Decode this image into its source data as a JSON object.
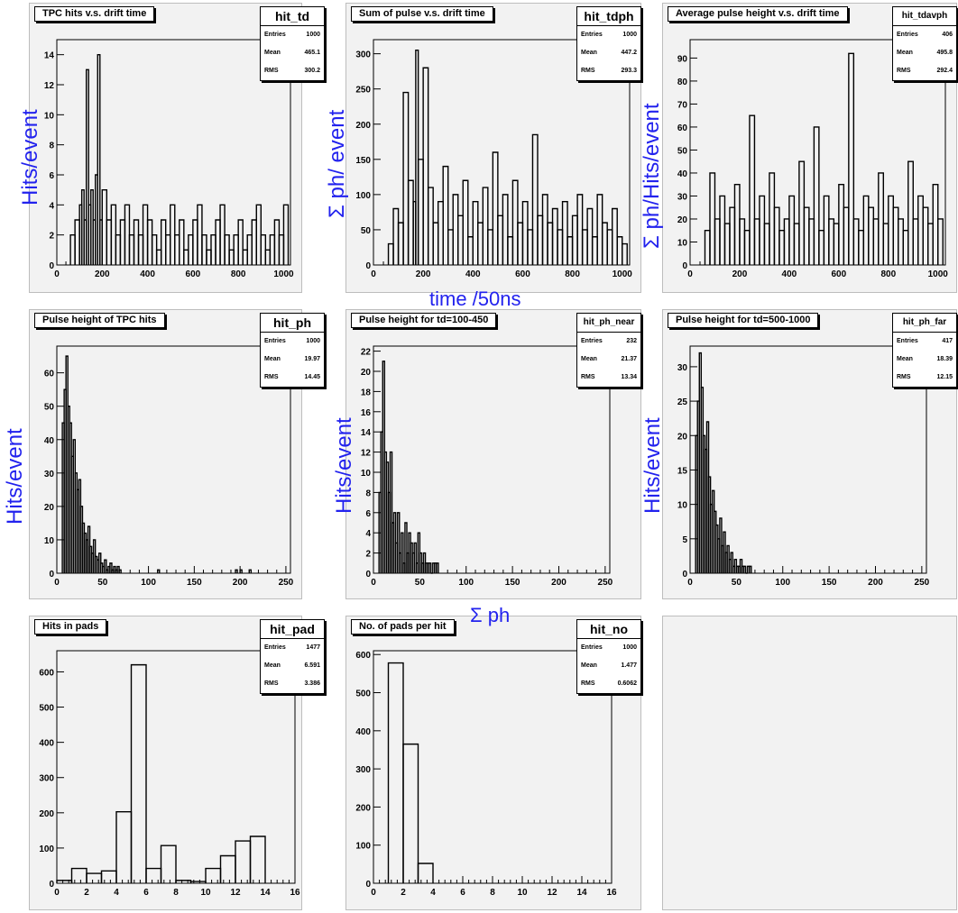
{
  "overlay": {
    "time_label": "time /50ns",
    "sum_ph_label": "Σ ph",
    "row1_ylabels": [
      "Hits/event",
      "Σ ph/ event",
      "Σ ph/Hits/event"
    ],
    "row2_ylabel": "Hits/event"
  },
  "colors": {
    "pad_bg": "#f2f2f2",
    "axis_label": "#2222ee",
    "line": "#000000"
  },
  "panels": [
    {
      "title": "TPC hits v.s. drift time",
      "stats": {
        "name": "hit_td",
        "entries_label": "Entries",
        "entries": "1000",
        "mean_label": "Mean",
        "mean": "465.1",
        "rms_label": "RMS",
        "rms": "300.2"
      }
    },
    {
      "title": "Sum of pulse v.s. drift time",
      "stats": {
        "name": "hit_tdph",
        "entries_label": "Entries",
        "entries": "1000",
        "mean_label": "Mean",
        "mean": "447.2",
        "rms_label": "RMS",
        "rms": "293.3"
      }
    },
    {
      "title": "Average pulse height v.s. drift time",
      "stats": {
        "name": "hit_tdavph",
        "entries_label": "Entries",
        "entries": "406",
        "mean_label": "Mean",
        "mean": "495.8",
        "rms_label": "RMS",
        "rms": "292.4"
      }
    },
    {
      "title": "Pulse height of TPC hits",
      "stats": {
        "name": "hit_ph",
        "entries_label": "Entries",
        "entries": "1000",
        "mean_label": "Mean",
        "mean": "19.97",
        "rms_label": "RMS",
        "rms": "14.45"
      }
    },
    {
      "title": "Pulse height for td=100-450",
      "stats": {
        "name": "hit_ph_near",
        "entries_label": "Entries",
        "entries": "232",
        "mean_label": "Mean",
        "mean": "21.37",
        "rms_label": "RMS",
        "rms": "13.34"
      }
    },
    {
      "title": "Pulse height for td=500-1000",
      "stats": {
        "name": "hit_ph_far",
        "entries_label": "Entries",
        "entries": "417",
        "mean_label": "Mean",
        "mean": "18.39",
        "rms_label": "RMS",
        "rms": "12.15"
      }
    },
    {
      "title": "Hits in pads",
      "stats": {
        "name": "hit_pad",
        "entries_label": "Entries",
        "entries": "1477",
        "mean_label": "Mean",
        "mean": "6.591",
        "rms_label": "RMS",
        "rms": "3.386"
      }
    },
    {
      "title": "No. of pads per hit",
      "stats": {
        "name": "hit_no",
        "entries_label": "Entries",
        "entries": "1000",
        "mean_label": "Mean",
        "mean": "1.477",
        "rms_label": "RMS",
        "rms": "0.6062"
      }
    }
  ],
  "chart_data": [
    {
      "type": "bar",
      "style": "step-histogram",
      "title": "TPC hits v.s. drift time",
      "xlim": [
        0,
        1030
      ],
      "ylim": [
        0,
        15
      ],
      "xticks": [
        0,
        200,
        400,
        600,
        800,
        1000
      ],
      "yticks": [
        0,
        2,
        4,
        6,
        8,
        10,
        12,
        14
      ],
      "x": [
        60,
        80,
        100,
        110,
        120,
        130,
        140,
        150,
        160,
        170,
        180,
        190,
        200,
        220,
        240,
        260,
        280,
        300,
        320,
        340,
        360,
        380,
        400,
        420,
        440,
        460,
        480,
        500,
        520,
        540,
        560,
        580,
        600,
        620,
        640,
        660,
        680,
        700,
        720,
        740,
        760,
        780,
        800,
        820,
        840,
        860,
        880,
        900,
        920,
        940,
        960,
        980,
        1000
      ],
      "values": [
        2,
        3,
        4,
        5,
        3,
        13,
        4,
        5,
        3,
        6,
        14,
        3,
        5,
        3,
        4,
        2,
        3,
        4,
        2,
        3,
        2,
        4,
        3,
        2,
        1,
        3,
        2,
        4,
        2,
        3,
        1,
        2,
        3,
        4,
        2,
        1,
        2,
        3,
        4,
        2,
        1,
        2,
        3,
        1,
        2,
        3,
        4,
        2,
        1,
        2,
        3,
        2,
        4
      ]
    },
    {
      "type": "bar",
      "style": "step-histogram",
      "title": "Sum of pulse v.s. drift time",
      "xlim": [
        0,
        1030
      ],
      "ylim": [
        0,
        320
      ],
      "xticks": [
        0,
        200,
        400,
        600,
        800,
        1000
      ],
      "yticks": [
        0,
        50,
        100,
        150,
        200,
        250,
        300
      ],
      "x": [
        60,
        80,
        100,
        120,
        140,
        160,
        170,
        180,
        200,
        220,
        240,
        260,
        280,
        300,
        320,
        340,
        360,
        380,
        400,
        420,
        440,
        460,
        480,
        500,
        520,
        540,
        560,
        580,
        600,
        620,
        640,
        660,
        680,
        700,
        720,
        740,
        760,
        780,
        800,
        820,
        840,
        860,
        880,
        900,
        920,
        940,
        960,
        980,
        1000
      ],
      "values": [
        30,
        80,
        60,
        245,
        120,
        90,
        305,
        150,
        280,
        110,
        60,
        90,
        140,
        50,
        100,
        70,
        120,
        40,
        90,
        60,
        110,
        50,
        160,
        70,
        100,
        40,
        120,
        60,
        90,
        50,
        185,
        70,
        100,
        60,
        80,
        50,
        90,
        40,
        70,
        100,
        50,
        80,
        40,
        100,
        60,
        50,
        80,
        40,
        30
      ]
    },
    {
      "type": "bar",
      "style": "step-histogram",
      "title": "Average pulse height v.s. drift time",
      "xlim": [
        0,
        1030
      ],
      "ylim": [
        0,
        98
      ],
      "xticks": [
        0,
        200,
        400,
        600,
        800,
        1000
      ],
      "yticks": [
        0,
        10,
        20,
        30,
        40,
        50,
        60,
        70,
        80,
        90
      ],
      "x": [
        60,
        80,
        100,
        120,
        140,
        160,
        180,
        200,
        220,
        240,
        260,
        280,
        300,
        320,
        340,
        360,
        380,
        400,
        420,
        440,
        460,
        480,
        500,
        520,
        540,
        560,
        580,
        600,
        620,
        640,
        660,
        680,
        700,
        720,
        740,
        760,
        780,
        800,
        820,
        840,
        860,
        880,
        900,
        920,
        940,
        960,
        980,
        1000
      ],
      "values": [
        15,
        40,
        20,
        30,
        18,
        25,
        35,
        20,
        15,
        65,
        20,
        30,
        18,
        40,
        25,
        15,
        20,
        30,
        18,
        45,
        25,
        20,
        60,
        15,
        30,
        20,
        18,
        35,
        25,
        92,
        20,
        15,
        30,
        25,
        20,
        40,
        18,
        30,
        25,
        20,
        15,
        45,
        20,
        30,
        25,
        18,
        35,
        20
      ]
    },
    {
      "type": "bar",
      "style": "step-histogram",
      "title": "Pulse height of TPC hits",
      "xlim": [
        0,
        255
      ],
      "ylim": [
        0,
        68
      ],
      "xticks": [
        0,
        50,
        100,
        150,
        200,
        250
      ],
      "yticks": [
        0,
        10,
        20,
        30,
        40,
        50,
        60
      ],
      "x": [
        6,
        8,
        10,
        12,
        14,
        16,
        18,
        20,
        22,
        24,
        26,
        28,
        30,
        32,
        34,
        36,
        38,
        40,
        42,
        44,
        46,
        48,
        50,
        52,
        54,
        56,
        58,
        60,
        62,
        64,
        66,
        68,
        110,
        195,
        200,
        210
      ],
      "values": [
        45,
        55,
        65,
        50,
        45,
        35,
        40,
        30,
        25,
        28,
        20,
        15,
        12,
        10,
        14,
        8,
        6,
        10,
        5,
        4,
        6,
        3,
        2,
        4,
        1,
        2,
        3,
        1,
        2,
        1,
        2,
        1,
        1,
        1,
        1,
        1
      ]
    },
    {
      "type": "bar",
      "style": "step-histogram",
      "title": "Pulse height for td=100-450",
      "xlim": [
        0,
        255
      ],
      "ylim": [
        0,
        22.5
      ],
      "xticks": [
        0,
        50,
        100,
        150,
        200,
        250
      ],
      "yticks": [
        0,
        2,
        4,
        6,
        8,
        10,
        12,
        14,
        16,
        18,
        20,
        22
      ],
      "x": [
        6,
        8,
        10,
        12,
        14,
        16,
        18,
        20,
        22,
        24,
        26,
        28,
        30,
        32,
        34,
        36,
        38,
        40,
        42,
        44,
        46,
        48,
        50,
        52,
        54,
        56,
        58,
        60,
        62,
        64,
        66,
        68
      ],
      "values": [
        8,
        14,
        21,
        12,
        11,
        8,
        12,
        5,
        6,
        3,
        6,
        2,
        4,
        1,
        5,
        2,
        4,
        3,
        2,
        3,
        1,
        4,
        2,
        1,
        2,
        1,
        1,
        1,
        0,
        1,
        1,
        1
      ]
    },
    {
      "type": "bar",
      "style": "step-histogram",
      "title": "Pulse height for td=500-1000",
      "xlim": [
        0,
        255
      ],
      "ylim": [
        0,
        33
      ],
      "xticks": [
        0,
        50,
        100,
        150,
        200,
        250
      ],
      "yticks": [
        0,
        5,
        10,
        15,
        20,
        25,
        30
      ],
      "x": [
        6,
        8,
        10,
        12,
        14,
        16,
        18,
        20,
        22,
        24,
        26,
        28,
        30,
        32,
        34,
        36,
        38,
        40,
        42,
        44,
        46,
        48,
        50,
        52,
        54,
        56,
        58,
        60,
        62,
        64
      ],
      "values": [
        20,
        25,
        32,
        27,
        20,
        18,
        22,
        14,
        10,
        12,
        9,
        7,
        5,
        8,
        4,
        6,
        3,
        4,
        2,
        3,
        1,
        2,
        1,
        1,
        2,
        1,
        1,
        0,
        1,
        1
      ]
    },
    {
      "type": "bar",
      "style": "step-histogram",
      "title": "Hits in pads",
      "xlim": [
        0,
        16
      ],
      "ylim": [
        0,
        660
      ],
      "xticks": [
        0,
        2,
        4,
        6,
        8,
        10,
        12,
        14,
        16
      ],
      "yticks": [
        0,
        100,
        200,
        300,
        400,
        500,
        600
      ],
      "x": [
        0,
        1,
        2,
        3,
        4,
        5,
        6,
        7,
        8,
        9,
        10,
        11,
        12,
        13
      ],
      "values": [
        8,
        42,
        28,
        35,
        203,
        620,
        42,
        107,
        8,
        5,
        42,
        78,
        120,
        133
      ]
    },
    {
      "type": "bar",
      "style": "step-histogram",
      "title": "No. of pads per hit",
      "xlim": [
        0,
        16
      ],
      "ylim": [
        0,
        610
      ],
      "xticks": [
        0,
        2,
        4,
        6,
        8,
        10,
        12,
        14,
        16
      ],
      "yticks": [
        0,
        100,
        200,
        300,
        400,
        500,
        600
      ],
      "x": [
        1,
        2,
        3
      ],
      "values": [
        578,
        365,
        52
      ]
    }
  ]
}
